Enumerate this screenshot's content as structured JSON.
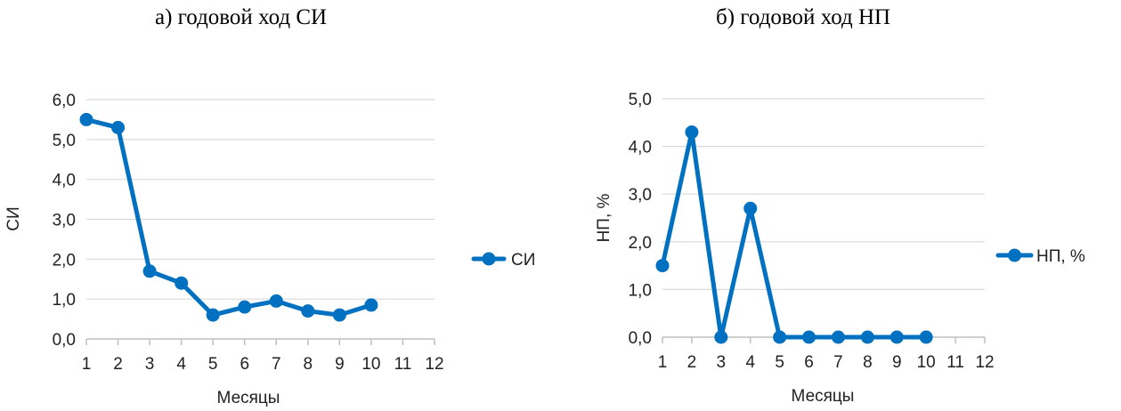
{
  "chart_data": [
    {
      "type": "line",
      "title": "а) годовой ход СИ",
      "xlabel": "Месяцы",
      "ylabel": "СИ",
      "x": [
        1,
        2,
        3,
        4,
        5,
        6,
        7,
        8,
        9,
        10,
        11,
        12
      ],
      "xlim": [
        1,
        12
      ],
      "ylim": [
        0,
        6
      ],
      "ytick_labels": [
        "0,0",
        "1,0",
        "2,0",
        "3,0",
        "4,0",
        "5,0",
        "6,0"
      ],
      "grid": "horizontal",
      "legend": "right",
      "series": [
        {
          "name": "СИ",
          "color": "#0070C0",
          "x": [
            1,
            2,
            3,
            4,
            5,
            6,
            7,
            8,
            9,
            10
          ],
          "values": [
            5.5,
            5.3,
            1.7,
            1.4,
            0.6,
            0.8,
            0.95,
            0.7,
            0.6,
            0.85
          ]
        }
      ]
    },
    {
      "type": "line",
      "title": "б) годовой ход НП",
      "xlabel": "Месяцы",
      "ylabel": "НП, %",
      "x": [
        1,
        2,
        3,
        4,
        5,
        6,
        7,
        8,
        9,
        10,
        11,
        12
      ],
      "xlim": [
        1,
        12
      ],
      "ylim": [
        0,
        5
      ],
      "ytick_labels": [
        "0,0",
        "1,0",
        "2,0",
        "3,0",
        "4,0",
        "5,0"
      ],
      "grid": "horizontal",
      "legend": "right",
      "series": [
        {
          "name": "НП, %",
          "color": "#0070C0",
          "x": [
            1,
            2,
            3,
            4,
            5,
            6,
            7,
            8,
            9,
            10
          ],
          "values": [
            1.5,
            4.3,
            0.0,
            2.7,
            0.0,
            0.0,
            0.0,
            0.0,
            0.0,
            0.0
          ]
        }
      ]
    }
  ]
}
